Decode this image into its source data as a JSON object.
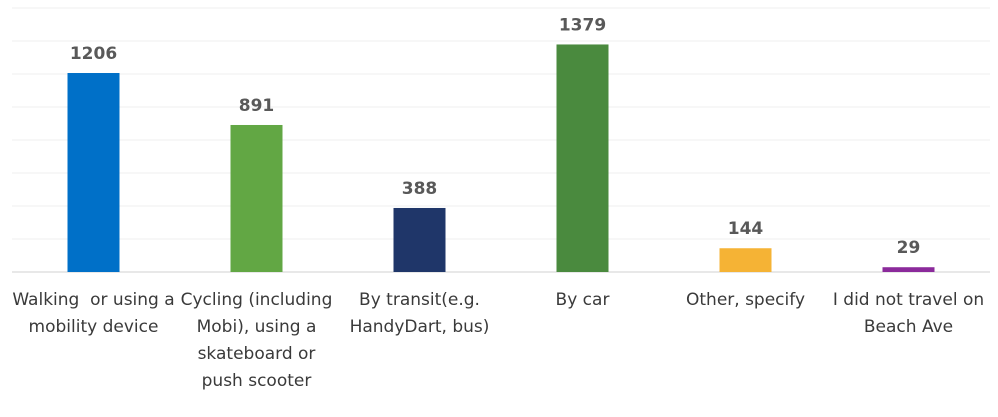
{
  "chart_data": {
    "type": "bar",
    "categories": [
      "Walking  or using a mobility device",
      "Cycling (including Mobi), using a skateboard or push scooter",
      "By transit(e.g. HandyDart, bus)",
      "By car",
      "Other, specify",
      "I did not travel on Beach Ave"
    ],
    "values": [
      1206,
      891,
      388,
      1379,
      144,
      29
    ],
    "colors": [
      "#0070c8",
      "#62a744",
      "#1f3669",
      "#4a8a3e",
      "#f5b335",
      "#8b2a9b"
    ],
    "ylim": [
      0,
      1600
    ],
    "yticks": [
      0,
      200,
      400,
      600,
      800,
      1000,
      1200,
      1400,
      1600
    ],
    "grid": true
  }
}
